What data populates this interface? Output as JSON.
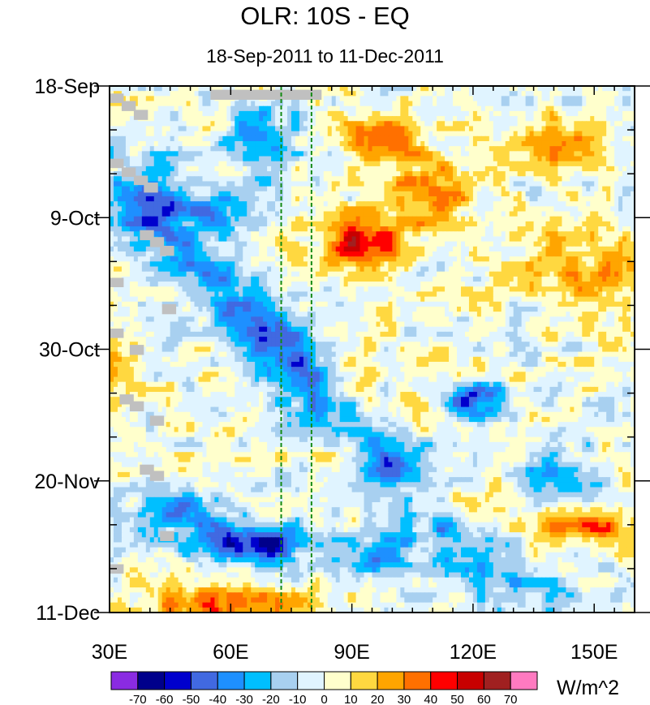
{
  "chart_data": {
    "type": "heatmap",
    "title": "OLR: 10S - EQ",
    "subtitle": "18-Sep-2011 to 11-Dec-2011",
    "variable": "OLR anomaly",
    "units": "W/m^2",
    "x_range": [
      30,
      160
    ],
    "x_ticks": [
      {
        "value": 30,
        "label": "30E"
      },
      {
        "value": 60,
        "label": "60E"
      },
      {
        "value": 90,
        "label": "90E"
      },
      {
        "value": 120,
        "label": "120E"
      },
      {
        "value": 150,
        "label": "150E"
      }
    ],
    "y_range_days": [
      0,
      84
    ],
    "y_ticks": [
      {
        "day": 0,
        "label": "18-Sep"
      },
      {
        "day": 21,
        "label": "9-Oct"
      },
      {
        "day": 42,
        "label": "30-Oct"
      },
      {
        "day": 63,
        "label": "20-Nov"
      },
      {
        "day": 84,
        "label": "11-Dec"
      }
    ],
    "reference_lines_lon": [
      72.5,
      80
    ],
    "colorbar": {
      "levels": [
        -70,
        -60,
        -50,
        -40,
        -30,
        -20,
        -10,
        0,
        10,
        20,
        30,
        40,
        50,
        60,
        70
      ],
      "colors": [
        "#8a2be2",
        "#00008b",
        "#0000cd",
        "#4169e1",
        "#1e90ff",
        "#00bfff",
        "#a8d0f0",
        "#e0f4ff",
        "#ffffcc",
        "#ffd840",
        "#ffa500",
        "#ff7000",
        "#ff0000",
        "#c80000",
        "#a02020",
        "#ff7ac0"
      ],
      "label": "W/m^2"
    },
    "features": [
      {
        "label": "suppressed convection east of 85E",
        "lon_range": [
          82,
          110
        ],
        "day_range": [
          0,
          30
        ],
        "sign": "positive",
        "peak": 50
      },
      {
        "label": "enhanced convection west of 80E",
        "lon_range": [
          55,
          80
        ],
        "day_range": [
          0,
          15
        ],
        "sign": "negative",
        "peak": -40
      },
      {
        "label": "eastward-propagating convective envelope",
        "lon_range": [
          35,
          130
        ],
        "day_range": [
          25,
          78
        ],
        "sign": "negative",
        "peak": -70
      },
      {
        "label": "late-period dry anomaly west of 75E",
        "lon_range": [
          33,
          80
        ],
        "day_range": [
          76,
          84
        ],
        "sign": "positive",
        "peak": 30
      }
    ]
  }
}
